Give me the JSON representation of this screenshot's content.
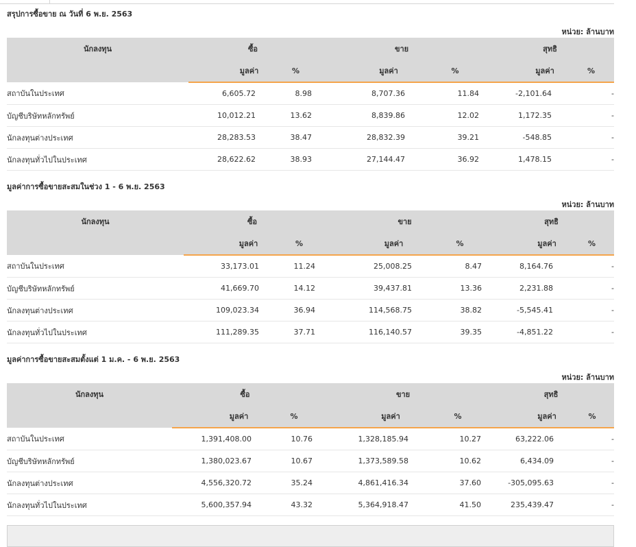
{
  "columns": {
    "investor": "นักลงทุน",
    "buy": "ซื้อ",
    "sell": "ขาย",
    "net": "สุทธิ",
    "value": "มูลค่า",
    "pct": "%"
  },
  "sections": [
    {
      "title": "สรุปการซื้อขาย ณ วันที่ 6 พ.ย. 2563",
      "unit": "หน่วย: ล้านบาท",
      "rows": [
        {
          "name": "สถาบันในประเทศ",
          "buy": "6,605.72",
          "buy_pct": "8.98",
          "sell": "8,707.36",
          "sell_pct": "11.84",
          "net": "-2,101.64",
          "net_pct": "-",
          "net_sign": "neg"
        },
        {
          "name": "บัญชีบริษัทหลักทรัพย์",
          "buy": "10,012.21",
          "buy_pct": "13.62",
          "sell": "8,839.86",
          "sell_pct": "12.02",
          "net": "1,172.35",
          "net_pct": "-",
          "net_sign": "pos"
        },
        {
          "name": "นักลงทุนต่างประเทศ",
          "buy": "28,283.53",
          "buy_pct": "38.47",
          "sell": "28,832.39",
          "sell_pct": "39.21",
          "net": "-548.85",
          "net_pct": "-",
          "net_sign": "neg"
        },
        {
          "name": "นักลงทุนทั่วไปในประเทศ",
          "buy": "28,622.62",
          "buy_pct": "38.93",
          "sell": "27,144.47",
          "sell_pct": "36.92",
          "net": "1,478.15",
          "net_pct": "-",
          "net_sign": "pos"
        }
      ]
    },
    {
      "title": "มูลค่าการซื้อขายสะสมในช่วง 1 - 6 พ.ย. 2563",
      "unit": "หน่วย: ล้านบาท",
      "rows": [
        {
          "name": "สถาบันในประเทศ",
          "buy": "33,173.01",
          "buy_pct": "11.24",
          "sell": "25,008.25",
          "sell_pct": "8.47",
          "net": "8,164.76",
          "net_pct": "-",
          "net_sign": "pos"
        },
        {
          "name": "บัญชีบริษัทหลักทรัพย์",
          "buy": "41,669.70",
          "buy_pct": "14.12",
          "sell": "39,437.81",
          "sell_pct": "13.36",
          "net": "2,231.88",
          "net_pct": "-",
          "net_sign": "pos"
        },
        {
          "name": "นักลงทุนต่างประเทศ",
          "buy": "109,023.34",
          "buy_pct": "36.94",
          "sell": "114,568.75",
          "sell_pct": "38.82",
          "net": "-5,545.41",
          "net_pct": "-",
          "net_sign": "neg"
        },
        {
          "name": "นักลงทุนทั่วไปในประเทศ",
          "buy": "111,289.35",
          "buy_pct": "37.71",
          "sell": "116,140.57",
          "sell_pct": "39.35",
          "net": "-4,851.22",
          "net_pct": "-",
          "net_sign": "neg"
        }
      ]
    },
    {
      "title": "มูลค่าการซื้อขายสะสมตั้งแต่ 1 ม.ค. - 6 พ.ย. 2563",
      "unit": "หน่วย: ล้านบาท",
      "rows": [
        {
          "name": "สถาบันในประเทศ",
          "buy": "1,391,408.00",
          "buy_pct": "10.76",
          "sell": "1,328,185.94",
          "sell_pct": "10.27",
          "net": "63,222.06",
          "net_pct": "-",
          "net_sign": "pos"
        },
        {
          "name": "บัญชีบริษัทหลักทรัพย์",
          "buy": "1,380,023.67",
          "buy_pct": "10.67",
          "sell": "1,373,589.58",
          "sell_pct": "10.62",
          "net": "6,434.09",
          "net_pct": "-",
          "net_sign": "pos"
        },
        {
          "name": "นักลงทุนต่างประเทศ",
          "buy": "4,556,320.72",
          "buy_pct": "35.24",
          "sell": "4,861,416.34",
          "sell_pct": "37.60",
          "net": "-305,095.63",
          "net_pct": "-",
          "net_sign": "neg"
        },
        {
          "name": "นักลงทุนทั่วไปในประเทศ",
          "buy": "5,600,357.94",
          "buy_pct": "43.32",
          "sell": "5,364,918.47",
          "sell_pct": "41.50",
          "net": "235,439.47",
          "net_pct": "-",
          "net_sign": "pos"
        }
      ]
    }
  ],
  "colors": {
    "header_bg": "#d9d9d9",
    "accent_line": "#f5a44a",
    "negative": "#e52a2a",
    "positive": "#3a9b2c"
  }
}
